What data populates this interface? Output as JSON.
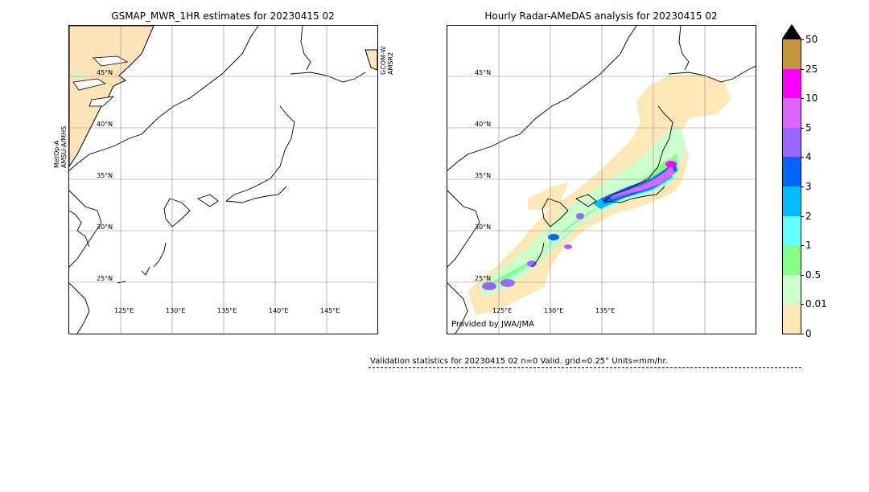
{
  "left_panel": {
    "title": "GSMAP_MWR_1HR estimates for 20230415 02",
    "lat_labels": [
      "45°N",
      "40°N",
      "35°N",
      "30°N",
      "25°N"
    ],
    "lon_labels": [
      "125°E",
      "130°E",
      "135°E",
      "140°E",
      "145°E"
    ],
    "sat_left": "MetOp-A\nAMSU-A/MHS",
    "sat_left_line1": "MetOp-A",
    "sat_left_line2": "AMSU-A/MHS",
    "sat_right_line1": "GCOM-W",
    "sat_right_line2": "AMSR2"
  },
  "right_panel": {
    "title": "Hourly Radar-AMeDAS analysis for 20230415 02",
    "lat_labels": [
      "45°N",
      "40°N",
      "35°N",
      "30°N",
      "25°N"
    ],
    "lon_labels": [
      "125°E",
      "130°E",
      "135°E"
    ],
    "credit": "Provided by JWA/JMA"
  },
  "colorbar": {
    "labels": [
      "50",
      "25",
      "10",
      "5",
      "4",
      "3",
      "2",
      "1",
      "0.5",
      "0.01",
      "0"
    ],
    "colors": [
      "#c8963c",
      "#ff00ff",
      "#dd66ff",
      "#9966ff",
      "#0066ff",
      "#00bbff",
      "#66ffff",
      "#88ff88",
      "#ccffcc",
      "#ffe8b8"
    ],
    "over_color": "#000000"
  },
  "validation": {
    "text": "Validation statistics for 20230415 02  n=0 Valid. grid=0.25° Units=mm/hr."
  }
}
